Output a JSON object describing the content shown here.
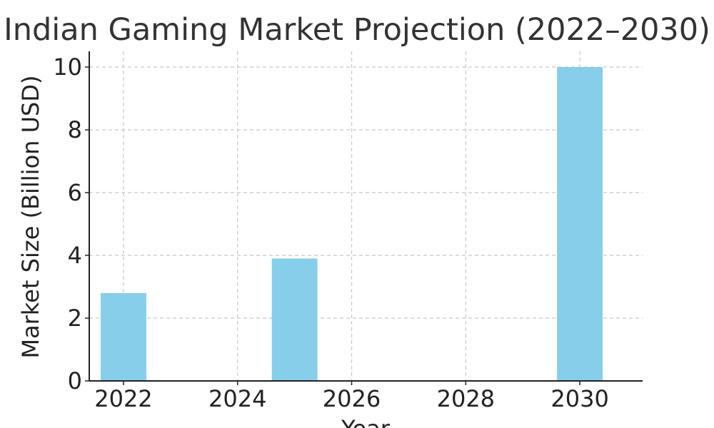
{
  "chart_data": {
    "type": "bar",
    "title": "Indian Gaming Market Projection (2022–2030)",
    "xlabel": "Year",
    "ylabel": "Market Size (Billion USD)",
    "x": [
      2022,
      2025,
      2030
    ],
    "values": [
      2.8,
      3.9,
      10.0
    ],
    "xlim": [
      2021.4,
      2031.1
    ],
    "ylim": [
      0,
      10.5
    ],
    "xticks": [
      2022,
      2024,
      2026,
      2028,
      2030
    ],
    "yticks": [
      0,
      2,
      4,
      6,
      8,
      10
    ],
    "bar_width_years": 0.8,
    "bar_color": "#87ceeb",
    "grid": true,
    "legend": "none"
  }
}
